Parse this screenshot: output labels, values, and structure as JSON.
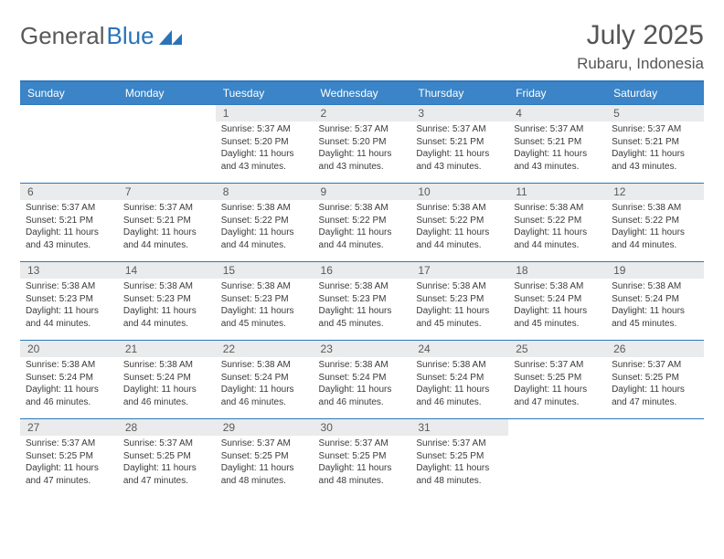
{
  "brand": {
    "part1": "General",
    "part2": "Blue",
    "logo_color": "#2a73b8"
  },
  "title": "July 2025",
  "location": "Rubaru, Indonesia",
  "colors": {
    "header_bg": "#3a84c7",
    "header_border": "#2f78bc",
    "daynum_bg": "#e9ebec",
    "text": "#3a3a3a"
  },
  "fonts": {
    "title_size": 30,
    "location_size": 17,
    "th_size": 12,
    "cell_size": 10
  },
  "day_headers": [
    "Sunday",
    "Monday",
    "Tuesday",
    "Wednesday",
    "Thursday",
    "Friday",
    "Saturday"
  ],
  "weeks": [
    [
      null,
      null,
      {
        "d": "1",
        "sr": "5:37 AM",
        "ss": "5:20 PM",
        "dl": "11 hours and 43 minutes."
      },
      {
        "d": "2",
        "sr": "5:37 AM",
        "ss": "5:20 PM",
        "dl": "11 hours and 43 minutes."
      },
      {
        "d": "3",
        "sr": "5:37 AM",
        "ss": "5:21 PM",
        "dl": "11 hours and 43 minutes."
      },
      {
        "d": "4",
        "sr": "5:37 AM",
        "ss": "5:21 PM",
        "dl": "11 hours and 43 minutes."
      },
      {
        "d": "5",
        "sr": "5:37 AM",
        "ss": "5:21 PM",
        "dl": "11 hours and 43 minutes."
      }
    ],
    [
      {
        "d": "6",
        "sr": "5:37 AM",
        "ss": "5:21 PM",
        "dl": "11 hours and 43 minutes."
      },
      {
        "d": "7",
        "sr": "5:37 AM",
        "ss": "5:21 PM",
        "dl": "11 hours and 44 minutes."
      },
      {
        "d": "8",
        "sr": "5:38 AM",
        "ss": "5:22 PM",
        "dl": "11 hours and 44 minutes."
      },
      {
        "d": "9",
        "sr": "5:38 AM",
        "ss": "5:22 PM",
        "dl": "11 hours and 44 minutes."
      },
      {
        "d": "10",
        "sr": "5:38 AM",
        "ss": "5:22 PM",
        "dl": "11 hours and 44 minutes."
      },
      {
        "d": "11",
        "sr": "5:38 AM",
        "ss": "5:22 PM",
        "dl": "11 hours and 44 minutes."
      },
      {
        "d": "12",
        "sr": "5:38 AM",
        "ss": "5:22 PM",
        "dl": "11 hours and 44 minutes."
      }
    ],
    [
      {
        "d": "13",
        "sr": "5:38 AM",
        "ss": "5:23 PM",
        "dl": "11 hours and 44 minutes."
      },
      {
        "d": "14",
        "sr": "5:38 AM",
        "ss": "5:23 PM",
        "dl": "11 hours and 44 minutes."
      },
      {
        "d": "15",
        "sr": "5:38 AM",
        "ss": "5:23 PM",
        "dl": "11 hours and 45 minutes."
      },
      {
        "d": "16",
        "sr": "5:38 AM",
        "ss": "5:23 PM",
        "dl": "11 hours and 45 minutes."
      },
      {
        "d": "17",
        "sr": "5:38 AM",
        "ss": "5:23 PM",
        "dl": "11 hours and 45 minutes."
      },
      {
        "d": "18",
        "sr": "5:38 AM",
        "ss": "5:24 PM",
        "dl": "11 hours and 45 minutes."
      },
      {
        "d": "19",
        "sr": "5:38 AM",
        "ss": "5:24 PM",
        "dl": "11 hours and 45 minutes."
      }
    ],
    [
      {
        "d": "20",
        "sr": "5:38 AM",
        "ss": "5:24 PM",
        "dl": "11 hours and 46 minutes."
      },
      {
        "d": "21",
        "sr": "5:38 AM",
        "ss": "5:24 PM",
        "dl": "11 hours and 46 minutes."
      },
      {
        "d": "22",
        "sr": "5:38 AM",
        "ss": "5:24 PM",
        "dl": "11 hours and 46 minutes."
      },
      {
        "d": "23",
        "sr": "5:38 AM",
        "ss": "5:24 PM",
        "dl": "11 hours and 46 minutes."
      },
      {
        "d": "24",
        "sr": "5:38 AM",
        "ss": "5:24 PM",
        "dl": "11 hours and 46 minutes."
      },
      {
        "d": "25",
        "sr": "5:37 AM",
        "ss": "5:25 PM",
        "dl": "11 hours and 47 minutes."
      },
      {
        "d": "26",
        "sr": "5:37 AM",
        "ss": "5:25 PM",
        "dl": "11 hours and 47 minutes."
      }
    ],
    [
      {
        "d": "27",
        "sr": "5:37 AM",
        "ss": "5:25 PM",
        "dl": "11 hours and 47 minutes."
      },
      {
        "d": "28",
        "sr": "5:37 AM",
        "ss": "5:25 PM",
        "dl": "11 hours and 47 minutes."
      },
      {
        "d": "29",
        "sr": "5:37 AM",
        "ss": "5:25 PM",
        "dl": "11 hours and 48 minutes."
      },
      {
        "d": "30",
        "sr": "5:37 AM",
        "ss": "5:25 PM",
        "dl": "11 hours and 48 minutes."
      },
      {
        "d": "31",
        "sr": "5:37 AM",
        "ss": "5:25 PM",
        "dl": "11 hours and 48 minutes."
      },
      null,
      null
    ]
  ],
  "labels": {
    "sunrise": "Sunrise: ",
    "sunset": "Sunset: ",
    "daylight": "Daylight: "
  }
}
